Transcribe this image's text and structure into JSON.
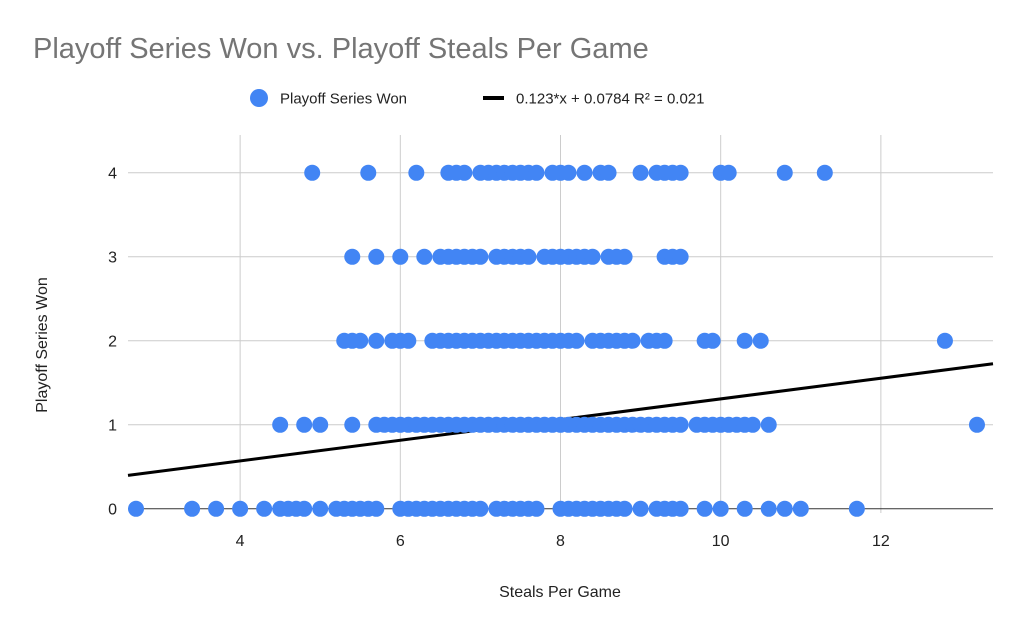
{
  "chart_data": {
    "type": "scatter",
    "title": "Playoff Series Won vs. Playoff Steals Per Game",
    "xlabel": "Steals Per Game",
    "ylabel": "Playoff Series Won",
    "xlim": [
      2.6,
      13.4
    ],
    "ylim": [
      -0.05,
      4.45
    ],
    "x_ticks": [
      4,
      6,
      8,
      10,
      12
    ],
    "y_ticks": [
      0,
      1,
      2,
      3,
      4
    ],
    "grid": true,
    "legend_position": "top",
    "series": [
      {
        "name": "Playoff Series Won",
        "color": "#4285f4",
        "points": [
          [
            4.9,
            4
          ],
          [
            5.6,
            4
          ],
          [
            6.2,
            4
          ],
          [
            6.6,
            4
          ],
          [
            6.7,
            4
          ],
          [
            6.8,
            4
          ],
          [
            7.0,
            4
          ],
          [
            7.1,
            4
          ],
          [
            7.2,
            4
          ],
          [
            7.3,
            4
          ],
          [
            7.4,
            4
          ],
          [
            7.5,
            4
          ],
          [
            7.6,
            4
          ],
          [
            7.7,
            4
          ],
          [
            7.9,
            4
          ],
          [
            8.0,
            4
          ],
          [
            8.1,
            4
          ],
          [
            8.3,
            4
          ],
          [
            8.5,
            4
          ],
          [
            8.6,
            4
          ],
          [
            9.0,
            4
          ],
          [
            9.2,
            4
          ],
          [
            9.3,
            4
          ],
          [
            9.4,
            4
          ],
          [
            9.5,
            4
          ],
          [
            10.0,
            4
          ],
          [
            10.1,
            4
          ],
          [
            10.8,
            4
          ],
          [
            11.3,
            4
          ],
          [
            5.4,
            3
          ],
          [
            5.7,
            3
          ],
          [
            6.0,
            3
          ],
          [
            6.3,
            3
          ],
          [
            6.5,
            3
          ],
          [
            6.6,
            3
          ],
          [
            6.7,
            3
          ],
          [
            6.8,
            3
          ],
          [
            6.9,
            3
          ],
          [
            7.0,
            3
          ],
          [
            7.2,
            3
          ],
          [
            7.3,
            3
          ],
          [
            7.4,
            3
          ],
          [
            7.5,
            3
          ],
          [
            7.6,
            3
          ],
          [
            7.8,
            3
          ],
          [
            7.9,
            3
          ],
          [
            8.0,
            3
          ],
          [
            8.1,
            3
          ],
          [
            8.2,
            3
          ],
          [
            8.3,
            3
          ],
          [
            8.4,
            3
          ],
          [
            8.6,
            3
          ],
          [
            8.7,
            3
          ],
          [
            8.8,
            3
          ],
          [
            9.3,
            3
          ],
          [
            9.4,
            3
          ],
          [
            9.5,
            3
          ],
          [
            5.3,
            2
          ],
          [
            5.4,
            2
          ],
          [
            5.5,
            2
          ],
          [
            5.7,
            2
          ],
          [
            5.9,
            2
          ],
          [
            6.0,
            2
          ],
          [
            6.1,
            2
          ],
          [
            6.4,
            2
          ],
          [
            6.5,
            2
          ],
          [
            6.6,
            2
          ],
          [
            6.7,
            2
          ],
          [
            6.8,
            2
          ],
          [
            6.9,
            2
          ],
          [
            7.0,
            2
          ],
          [
            7.1,
            2
          ],
          [
            7.2,
            2
          ],
          [
            7.3,
            2
          ],
          [
            7.4,
            2
          ],
          [
            7.5,
            2
          ],
          [
            7.6,
            2
          ],
          [
            7.7,
            2
          ],
          [
            7.8,
            2
          ],
          [
            7.9,
            2
          ],
          [
            8.0,
            2
          ],
          [
            8.1,
            2
          ],
          [
            8.2,
            2
          ],
          [
            8.4,
            2
          ],
          [
            8.5,
            2
          ],
          [
            8.6,
            2
          ],
          [
            8.7,
            2
          ],
          [
            8.8,
            2
          ],
          [
            8.9,
            2
          ],
          [
            9.1,
            2
          ],
          [
            9.2,
            2
          ],
          [
            9.3,
            2
          ],
          [
            9.8,
            2
          ],
          [
            9.9,
            2
          ],
          [
            10.3,
            2
          ],
          [
            10.5,
            2
          ],
          [
            12.8,
            2
          ],
          [
            4.5,
            1
          ],
          [
            4.8,
            1
          ],
          [
            5.0,
            1
          ],
          [
            5.4,
            1
          ],
          [
            5.7,
            1
          ],
          [
            5.8,
            1
          ],
          [
            5.9,
            1
          ],
          [
            6.0,
            1
          ],
          [
            6.1,
            1
          ],
          [
            6.2,
            1
          ],
          [
            6.3,
            1
          ],
          [
            6.4,
            1
          ],
          [
            6.5,
            1
          ],
          [
            6.6,
            1
          ],
          [
            6.7,
            1
          ],
          [
            6.8,
            1
          ],
          [
            6.9,
            1
          ],
          [
            7.0,
            1
          ],
          [
            7.1,
            1
          ],
          [
            7.2,
            1
          ],
          [
            7.3,
            1
          ],
          [
            7.4,
            1
          ],
          [
            7.5,
            1
          ],
          [
            7.6,
            1
          ],
          [
            7.7,
            1
          ],
          [
            7.8,
            1
          ],
          [
            7.9,
            1
          ],
          [
            8.0,
            1
          ],
          [
            8.1,
            1
          ],
          [
            8.2,
            1
          ],
          [
            8.3,
            1
          ],
          [
            8.4,
            1
          ],
          [
            8.5,
            1
          ],
          [
            8.6,
            1
          ],
          [
            8.7,
            1
          ],
          [
            8.8,
            1
          ],
          [
            8.9,
            1
          ],
          [
            9.0,
            1
          ],
          [
            9.1,
            1
          ],
          [
            9.2,
            1
          ],
          [
            9.3,
            1
          ],
          [
            9.4,
            1
          ],
          [
            9.5,
            1
          ],
          [
            9.7,
            1
          ],
          [
            9.8,
            1
          ],
          [
            9.9,
            1
          ],
          [
            10.0,
            1
          ],
          [
            10.1,
            1
          ],
          [
            10.2,
            1
          ],
          [
            10.3,
            1
          ],
          [
            10.4,
            1
          ],
          [
            10.6,
            1
          ],
          [
            13.2,
            1
          ],
          [
            2.7,
            0
          ],
          [
            3.4,
            0
          ],
          [
            3.7,
            0
          ],
          [
            4.0,
            0
          ],
          [
            4.3,
            0
          ],
          [
            4.5,
            0
          ],
          [
            4.6,
            0
          ],
          [
            4.7,
            0
          ],
          [
            4.8,
            0
          ],
          [
            5.0,
            0
          ],
          [
            5.2,
            0
          ],
          [
            5.3,
            0
          ],
          [
            5.4,
            0
          ],
          [
            5.5,
            0
          ],
          [
            5.6,
            0
          ],
          [
            5.7,
            0
          ],
          [
            6.0,
            0
          ],
          [
            6.1,
            0
          ],
          [
            6.2,
            0
          ],
          [
            6.3,
            0
          ],
          [
            6.4,
            0
          ],
          [
            6.5,
            0
          ],
          [
            6.6,
            0
          ],
          [
            6.7,
            0
          ],
          [
            6.8,
            0
          ],
          [
            6.9,
            0
          ],
          [
            7.0,
            0
          ],
          [
            7.2,
            0
          ],
          [
            7.3,
            0
          ],
          [
            7.4,
            0
          ],
          [
            7.5,
            0
          ],
          [
            7.6,
            0
          ],
          [
            7.7,
            0
          ],
          [
            8.0,
            0
          ],
          [
            8.1,
            0
          ],
          [
            8.2,
            0
          ],
          [
            8.3,
            0
          ],
          [
            8.4,
            0
          ],
          [
            8.5,
            0
          ],
          [
            8.6,
            0
          ],
          [
            8.7,
            0
          ],
          [
            8.8,
            0
          ],
          [
            9.0,
            0
          ],
          [
            9.2,
            0
          ],
          [
            9.3,
            0
          ],
          [
            9.4,
            0
          ],
          [
            9.5,
            0
          ],
          [
            9.8,
            0
          ],
          [
            10.0,
            0
          ],
          [
            10.3,
            0
          ],
          [
            10.6,
            0
          ],
          [
            10.8,
            0
          ],
          [
            11.0,
            0
          ],
          [
            11.7,
            0
          ]
        ]
      }
    ],
    "trendline": {
      "label": "0.123*x + 0.0784 R² = 0.021",
      "slope": 0.123,
      "intercept": 0.0784,
      "r2": 0.021,
      "color": "#000000"
    }
  }
}
